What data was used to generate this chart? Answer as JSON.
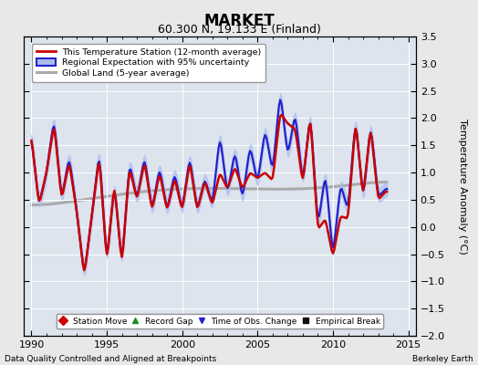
{
  "title": "MARKET",
  "subtitle": "60.300 N, 19.133 E (Finland)",
  "ylabel": "Temperature Anomaly (°C)",
  "xlim": [
    1989.5,
    2015.5
  ],
  "ylim": [
    -2.0,
    3.5
  ],
  "yticks": [
    -2,
    -1.5,
    -1,
    -0.5,
    0,
    0.5,
    1,
    1.5,
    2,
    2.5,
    3,
    3.5
  ],
  "xticks": [
    1990,
    1995,
    2000,
    2005,
    2010,
    2015
  ],
  "footer_left": "Data Quality Controlled and Aligned at Breakpoints",
  "footer_right": "Berkeley Earth",
  "bg_color": "#dde4ee",
  "outer_bg": "#e8e8e8",
  "grid_color": "#ffffff",
  "red_color": "#cc0000",
  "blue_color": "#2222cc",
  "blue_fill": "#aabbee",
  "gray_color": "#aaaaaa"
}
